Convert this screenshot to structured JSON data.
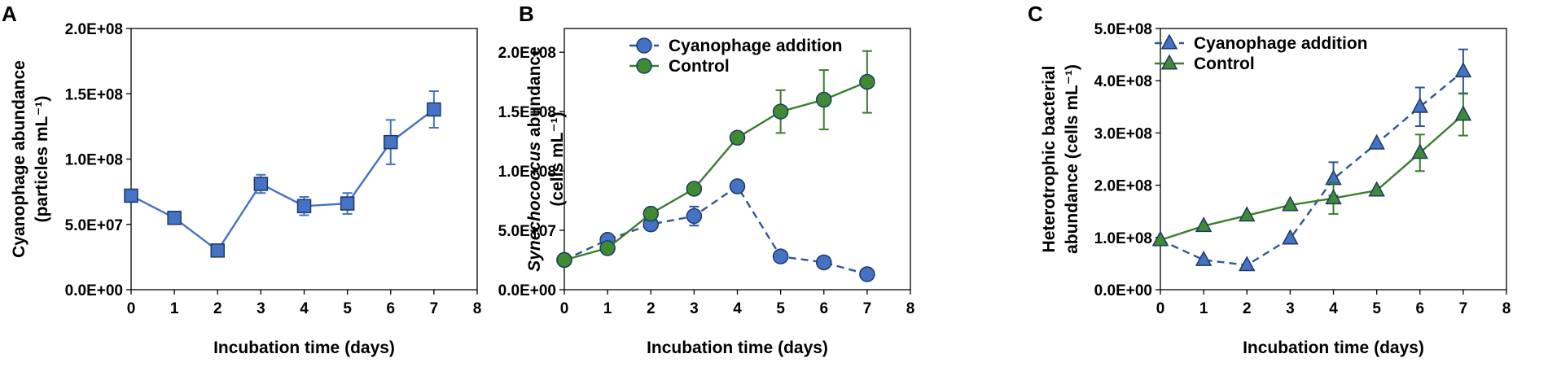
{
  "chart_data": [
    {
      "panel": "A",
      "type": "line",
      "title": "",
      "xlabel": "Incubation time (days)",
      "ylabel_lines": [
        "Cyanophage abundance",
        "(particles mL⁻¹)"
      ],
      "xlim": [
        0,
        8
      ],
      "ylim": [
        0,
        200000000
      ],
      "x_ticks": [
        "0",
        "1",
        "2",
        "3",
        "4",
        "5",
        "6",
        "7",
        "8"
      ],
      "y_ticks": [
        "0.0E+00",
        "5.0E+07",
        "1.0E+08",
        "1.5E+08",
        "2.0E+08"
      ],
      "legend": false,
      "series": [
        {
          "name": "Cyanophage abundance",
          "marker": "square",
          "style": "solid",
          "color": "#4472C4",
          "x": [
            0,
            1,
            2,
            3,
            4,
            5,
            6,
            7
          ],
          "y": [
            72000000,
            55000000,
            30000000,
            81000000,
            64000000,
            66000000,
            113000000,
            138000000
          ],
          "err": [
            0,
            0,
            0,
            7000000,
            7000000,
            8000000,
            17000000,
            14000000
          ]
        }
      ]
    },
    {
      "panel": "B",
      "type": "line",
      "title": "",
      "xlabel": "Incubation time (days)",
      "ylabel_italic": "Synechococcus",
      "ylabel_rest": " abundance",
      "ylabel_line2": "(cells mL⁻¹)",
      "xlim": [
        0,
        8
      ],
      "ylim": [
        0,
        220000000
      ],
      "x_ticks": [
        "0",
        "1",
        "2",
        "3",
        "4",
        "5",
        "6",
        "7",
        "8"
      ],
      "y_ticks": [
        "0.0E+00",
        "5.0E+07",
        "1.0E+08",
        "1.5E+08",
        "2.0E+08"
      ],
      "legend": "top-left",
      "series": [
        {
          "name": "Cyanophage addition",
          "marker": "circle",
          "style": "dashed",
          "color": "#2F5597",
          "fill": "#4472C4",
          "x": [
            0,
            1,
            2,
            3,
            4,
            5,
            6,
            7
          ],
          "y": [
            25000000,
            42000000,
            55000000,
            62000000,
            87000000,
            28000000,
            23000000,
            13000000
          ],
          "err": [
            0,
            0,
            5000000,
            8000000,
            0,
            0,
            0,
            0
          ]
        },
        {
          "name": "Control",
          "marker": "circle",
          "style": "solid",
          "color": "#3B7D2E",
          "fill": "#3E8B33",
          "x": [
            0,
            1,
            2,
            3,
            4,
            5,
            6,
            7
          ],
          "y": [
            25000000,
            35000000,
            64000000,
            85000000,
            128000000,
            150000000,
            160000000,
            175000000
          ],
          "err": [
            0,
            0,
            0,
            0,
            0,
            18000000,
            25000000,
            26000000
          ]
        }
      ]
    },
    {
      "panel": "C",
      "type": "line",
      "title": "",
      "xlabel": "Incubation time (days)",
      "ylabel_lines": [
        "Heterotrophic bacterial",
        "abundance (cells mL⁻¹)"
      ],
      "xlim": [
        0,
        8
      ],
      "ylim": [
        0,
        500000000
      ],
      "x_ticks": [
        "0",
        "1",
        "2",
        "3",
        "4",
        "5",
        "6",
        "7",
        "8"
      ],
      "y_ticks": [
        "0.0E+00",
        "1.0E+08",
        "2.0E+08",
        "3.0E+08",
        "4.0E+08",
        "5.0E+08"
      ],
      "legend": "top-left",
      "series": [
        {
          "name": "Cyanophage addition",
          "marker": "triangle",
          "style": "dashed",
          "color": "#2F5597",
          "fill": "#4472C4",
          "x": [
            0,
            1,
            2,
            3,
            4,
            5,
            6,
            7
          ],
          "y": [
            95000000,
            57000000,
            47000000,
            98000000,
            212000000,
            280000000,
            350000000,
            418000000
          ],
          "err": [
            0,
            0,
            0,
            0,
            32000000,
            0,
            37000000,
            42000000
          ]
        },
        {
          "name": "Control",
          "marker": "triangle",
          "style": "solid",
          "color": "#3B7D2E",
          "fill": "#3E8B33",
          "x": [
            0,
            1,
            2,
            3,
            4,
            5,
            6,
            7
          ],
          "y": [
            95000000,
            122000000,
            142000000,
            162000000,
            175000000,
            190000000,
            262000000,
            335000000
          ],
          "err": [
            0,
            0,
            0,
            0,
            30000000,
            0,
            35000000,
            40000000
          ]
        }
      ]
    }
  ]
}
